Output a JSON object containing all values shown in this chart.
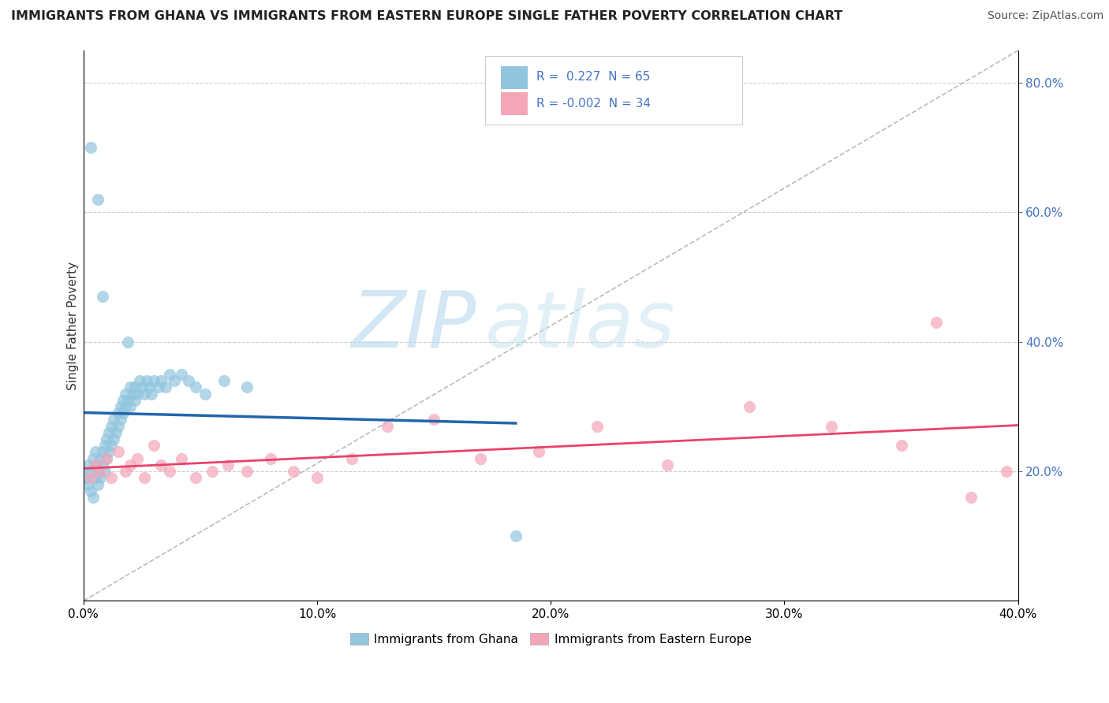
{
  "title": "IMMIGRANTS FROM GHANA VS IMMIGRANTS FROM EASTERN EUROPE SINGLE FATHER POVERTY CORRELATION CHART",
  "source": "Source: ZipAtlas.com",
  "ylabel": "Single Father Poverty",
  "xlim": [
    0.0,
    0.4
  ],
  "ylim": [
    0.0,
    0.85
  ],
  "x_ticks": [
    0.0,
    0.1,
    0.2,
    0.3,
    0.4
  ],
  "x_tick_labels": [
    "0.0%",
    "10.0%",
    "20.0%",
    "30.0%",
    "40.0%"
  ],
  "y_ticks_right": [
    0.2,
    0.4,
    0.6,
    0.8
  ],
  "y_tick_labels_right": [
    "20.0%",
    "40.0%",
    "60.0%",
    "80.0%"
  ],
  "ghana_R": 0.227,
  "ghana_N": 65,
  "eastern_R": -0.002,
  "eastern_N": 34,
  "ghana_color": "#92c5de",
  "eastern_color": "#f4a6b8",
  "ghana_line_color": "#2166ac",
  "eastern_line_color": "#e8436a",
  "diagonal_line_color": "#aaaaaa",
  "legend_entries": [
    "Immigrants from Ghana",
    "Immigrants from Eastern Europe"
  ],
  "ghana_scatter_x": [
    0.001,
    0.002,
    0.002,
    0.003,
    0.003,
    0.004,
    0.004,
    0.005,
    0.005,
    0.005,
    0.006,
    0.006,
    0.007,
    0.007,
    0.008,
    0.008,
    0.009,
    0.009,
    0.01,
    0.01,
    0.011,
    0.011,
    0.012,
    0.012,
    0.013,
    0.013,
    0.014,
    0.015,
    0.015,
    0.016,
    0.016,
    0.017,
    0.017,
    0.018,
    0.018,
    0.019,
    0.02,
    0.02,
    0.021,
    0.022,
    0.022,
    0.023,
    0.024,
    0.025,
    0.026,
    0.027,
    0.028,
    0.029,
    0.03,
    0.032,
    0.033,
    0.035,
    0.037,
    0.039,
    0.042,
    0.045,
    0.048,
    0.052,
    0.06,
    0.07,
    0.003,
    0.006,
    0.008,
    0.019,
    0.185
  ],
  "ghana_scatter_y": [
    0.19,
    0.18,
    0.21,
    0.17,
    0.2,
    0.16,
    0.22,
    0.19,
    0.21,
    0.23,
    0.18,
    0.2,
    0.19,
    0.22,
    0.21,
    0.23,
    0.2,
    0.24,
    0.22,
    0.25,
    0.23,
    0.26,
    0.24,
    0.27,
    0.25,
    0.28,
    0.26,
    0.27,
    0.29,
    0.28,
    0.3,
    0.29,
    0.31,
    0.3,
    0.32,
    0.31,
    0.3,
    0.33,
    0.32,
    0.31,
    0.33,
    0.32,
    0.34,
    0.33,
    0.32,
    0.34,
    0.33,
    0.32,
    0.34,
    0.33,
    0.34,
    0.33,
    0.35,
    0.34,
    0.35,
    0.34,
    0.33,
    0.32,
    0.34,
    0.33,
    0.7,
    0.62,
    0.47,
    0.4,
    0.1
  ],
  "eastern_scatter_x": [
    0.003,
    0.005,
    0.007,
    0.01,
    0.012,
    0.015,
    0.018,
    0.02,
    0.023,
    0.026,
    0.03,
    0.033,
    0.037,
    0.042,
    0.048,
    0.055,
    0.062,
    0.07,
    0.08,
    0.09,
    0.1,
    0.115,
    0.13,
    0.15,
    0.17,
    0.195,
    0.22,
    0.25,
    0.285,
    0.32,
    0.35,
    0.365,
    0.38,
    0.395
  ],
  "eastern_scatter_y": [
    0.19,
    0.21,
    0.2,
    0.22,
    0.19,
    0.23,
    0.2,
    0.21,
    0.22,
    0.19,
    0.24,
    0.21,
    0.2,
    0.22,
    0.19,
    0.2,
    0.21,
    0.2,
    0.22,
    0.2,
    0.19,
    0.22,
    0.27,
    0.28,
    0.22,
    0.23,
    0.27,
    0.21,
    0.3,
    0.27,
    0.24,
    0.43,
    0.16,
    0.2
  ]
}
